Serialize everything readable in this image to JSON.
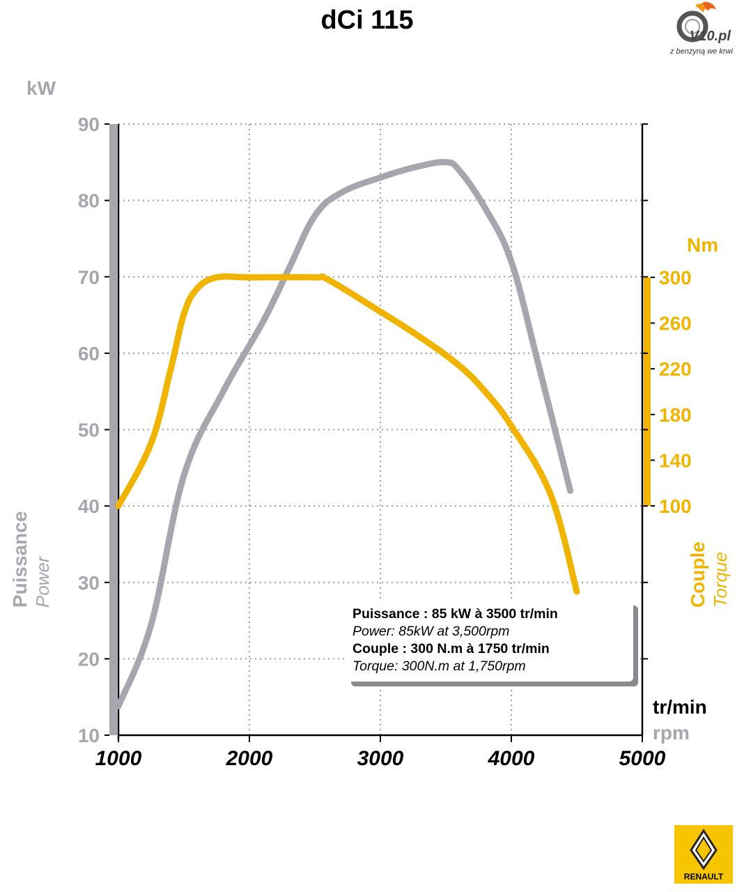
{
  "title": "dCi 115",
  "logo_v10": {
    "brand": "V10.pl",
    "tagline": "z benzyną we krwi"
  },
  "logo_renault": {
    "word": "RENAULT",
    "color": "#f7c400"
  },
  "axis_labels": {
    "y_unit": "kW",
    "y_label_fr": "Puissance",
    "y_label_en": "Power",
    "y2_unit": "Nm",
    "y2_label_fr": "Couple",
    "y2_label_en": "Torque",
    "x_unit_fr": "tr/min",
    "x_unit_en": "rpm"
  },
  "info_box": {
    "line1": "Puissance : 85 kW à 3500 tr/min",
    "line2": "Power: 85kW at 3,500rpm",
    "line3": "Couple : 300 N.m à 1750 tr/min",
    "line4": "Torque: 300N.m at 1,750rpm"
  },
  "colors": {
    "power": "#a7a6ae",
    "torque": "#f0b400",
    "grid": "#9a9aa0"
  },
  "chart_data": {
    "type": "line",
    "title": "dCi 115",
    "xlabel": "tr/min",
    "ylabel": "kW",
    "y2label": "Nm",
    "xlim": [
      1000,
      5000
    ],
    "ylim": [
      10,
      90
    ],
    "y2lim": [
      100,
      300
    ],
    "x_ticks": [
      1000,
      2000,
      3000,
      4000,
      5000
    ],
    "y_ticks": [
      10,
      20,
      30,
      40,
      50,
      60,
      70,
      80,
      90
    ],
    "y2_ticks": [
      100,
      140,
      180,
      220,
      260,
      300
    ],
    "grid": true,
    "series": [
      {
        "name": "Puissance",
        "axis": "left",
        "color": "#a7a6ae",
        "x": [
          1000,
          1250,
          1500,
          1800,
          2100,
          2300,
          2500,
          2700,
          3000,
          3300,
          3500,
          3600,
          3800,
          4000,
          4200,
          4450
        ],
        "y": [
          13.8,
          24.5,
          44,
          55,
          64,
          71,
          78,
          81,
          83,
          84.5,
          85,
          84,
          79,
          72,
          59,
          42
        ]
      },
      {
        "name": "Couple",
        "axis": "right",
        "color": "#f0b400",
        "x": [
          1000,
          1250,
          1400,
          1500,
          1600,
          1750,
          2000,
          2500,
          2600,
          3000,
          3300,
          3600,
          3800,
          4000,
          4300,
          4500
        ],
        "y": [
          100,
          155,
          220,
          268,
          290,
          300,
          300,
          300,
          298,
          270,
          248,
          223,
          200,
          170,
          110,
          25
        ]
      }
    ]
  }
}
